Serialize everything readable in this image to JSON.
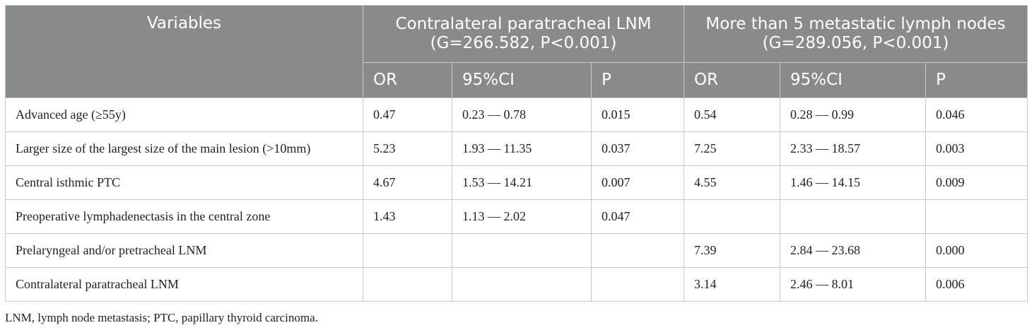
{
  "table": {
    "variables_header": "Variables",
    "group1_title": "Contralateral paratracheal LNM",
    "group1_stat": "(G=266.582, P<0.001)",
    "group2_title": "More than 5 metastatic lymph nodes",
    "group2_stat": "(G=289.056, P<0.001)",
    "sub": {
      "or": "OR",
      "ci": "95%CI",
      "p": "P"
    },
    "rows": [
      {
        "variable": "Advanced age (≥55y)",
        "g1_or": "0.47",
        "g1_ci": "0.23 — 0.78",
        "g1_p": "0.015",
        "g2_or": "0.54",
        "g2_ci": "0.28 — 0.99",
        "g2_p": "0.046"
      },
      {
        "variable": "Larger size of the largest size of the main lesion (>10mm)",
        "g1_or": "5.23",
        "g1_ci": "1.93 — 11.35",
        "g1_p": "0.037",
        "g2_or": "7.25",
        "g2_ci": "2.33 — 18.57",
        "g2_p": "0.003"
      },
      {
        "variable": "Central isthmic PTC",
        "g1_or": "4.67",
        "g1_ci": "1.53 — 14.21",
        "g1_p": "0.007",
        "g2_or": "4.55",
        "g2_ci": "1.46 — 14.15",
        "g2_p": "0.009"
      },
      {
        "variable": "Preoperative lymphadenectasis in the central zone",
        "g1_or": "1.43",
        "g1_ci": "1.13 — 2.02",
        "g1_p": "0.047",
        "g2_or": "",
        "g2_ci": "",
        "g2_p": ""
      },
      {
        "variable": "Prelaryngeal and/or pretracheal LNM",
        "g1_or": "",
        "g1_ci": "",
        "g1_p": "",
        "g2_or": "7.39",
        "g2_ci": "2.84 — 23.68",
        "g2_p": "0.000"
      },
      {
        "variable": "Contralateral paratracheal LNM",
        "g1_or": "",
        "g1_ci": "",
        "g1_p": "",
        "g2_or": "3.14",
        "g2_ci": "2.46 — 8.01",
        "g2_p": "0.006"
      }
    ]
  },
  "footnote": "LNM, lymph node metastasis; PTC, papillary thyroid carcinoma."
}
